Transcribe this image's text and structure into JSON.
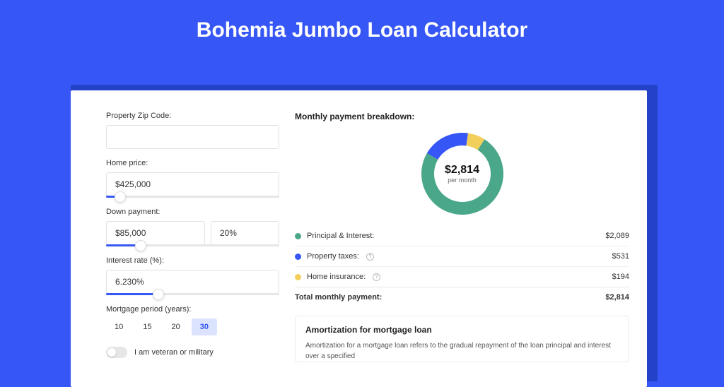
{
  "page": {
    "title": "Bohemia Jumbo Loan Calculator",
    "background_color": "#3656f5",
    "card_shadow_color": "#2441c9",
    "card_color": "#ffffff"
  },
  "form": {
    "zip": {
      "label": "Property Zip Code:",
      "value": ""
    },
    "home_price": {
      "label": "Home price:",
      "value": "$425,000",
      "slider_percent": 8
    },
    "down_payment": {
      "label": "Down payment:",
      "amount": "$85,000",
      "percent": "20%",
      "slider_percent": 20
    },
    "interest_rate": {
      "label": "Interest rate (%):",
      "value": "6.230%",
      "slider_percent": 30
    },
    "mortgage_period": {
      "label": "Mortgage period (years):",
      "options": [
        "10",
        "15",
        "20",
        "30"
      ],
      "active_index": 3
    },
    "veteran_toggle": {
      "label": "I am veteran or military",
      "on": false
    }
  },
  "breakdown": {
    "title": "Monthly payment breakdown:",
    "center_amount": "$2,814",
    "center_sub": "per month",
    "donut": {
      "type": "donut",
      "segments": [
        {
          "label": "Principal & Interest:",
          "value": "$2,089",
          "raw": 2089,
          "color": "#4aa789"
        },
        {
          "label": "Property taxes:",
          "value": "$531",
          "raw": 531,
          "color": "#3656f5",
          "has_info": true
        },
        {
          "label": "Home insurance:",
          "value": "$194",
          "raw": 194,
          "color": "#f2cf5b",
          "has_info": true
        }
      ],
      "ring_width": 18,
      "background_color": "#ffffff"
    },
    "total_label": "Total monthly payment:",
    "total_value": "$2,814"
  },
  "amort": {
    "title": "Amortization for mortgage loan",
    "text": "Amortization for a mortgage loan refers to the gradual repayment of the loan principal and interest over a specified"
  }
}
